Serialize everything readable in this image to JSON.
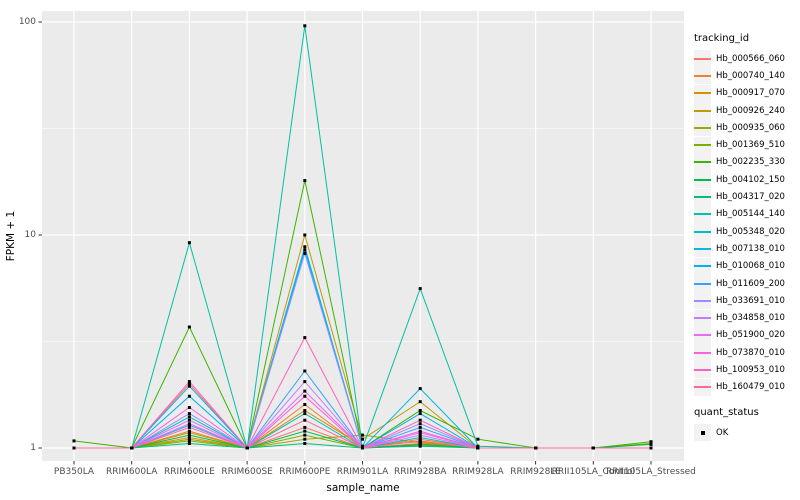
{
  "panel": {
    "bg": "#EBEBEB",
    "grid_color": "#FFFFFF",
    "key_bg": "#F2F2F2",
    "tick_color": "#333333",
    "tick_label_color": "#4D4D4D",
    "point_color": "#000000"
  },
  "chart_data": {
    "type": "line",
    "title": "",
    "xlabel": "sample_name",
    "ylabel": "FPKM + 1",
    "y_scale": "log10",
    "ylim": [
      1,
      112
    ],
    "y_ticks": [
      {
        "label": "1",
        "value": 1
      },
      {
        "label": "10",
        "value": 10
      },
      {
        "label": "100",
        "value": 100
      }
    ],
    "y_minor_ticks": [
      3.1623,
      31.623
    ],
    "grid": true,
    "legend_position": "right",
    "categories": [
      "PB350LA",
      "RRIM600LA",
      "RRIM600LE",
      "RRIM600SE",
      "RRIM600PE",
      "RRIM901LA",
      "RRIM928BA",
      "RRIM928LA",
      "RRIM928LE",
      "RRII105LA_Control",
      "RRII105LA_Stressed"
    ],
    "series": [
      {
        "name": "Hb_000566_060",
        "color": "#F8766D",
        "values": [
          1,
          1,
          2.0,
          1,
          1.25,
          1,
          1.05,
          1,
          1,
          1,
          1
        ]
      },
      {
        "name": "Hb_000740_140",
        "color": "#EA8331",
        "values": [
          1,
          1,
          1.2,
          1,
          1.6,
          1,
          1.1,
          1,
          1,
          1,
          1
        ]
      },
      {
        "name": "Hb_000917_070",
        "color": "#D89000",
        "values": [
          1,
          1,
          1.12,
          1,
          1.5,
          1.02,
          1.07,
          1,
          1,
          1,
          1
        ]
      },
      {
        "name": "Hb_000926_240",
        "color": "#C09B00",
        "values": [
          1,
          1,
          1.18,
          1,
          10,
          1.1,
          1.65,
          1,
          1,
          1,
          1
        ]
      },
      {
        "name": "Hb_000935_060",
        "color": "#A3A500",
        "values": [
          1,
          1,
          1.1,
          1,
          1.1,
          1.15,
          1.06,
          1,
          1,
          1,
          1
        ]
      },
      {
        "name": "Hb_001369_510",
        "color": "#7CAE00",
        "values": [
          1,
          1,
          1.08,
          1,
          1.15,
          1,
          1.03,
          1,
          1,
          1,
          1.05
        ]
      },
      {
        "name": "Hb_002235_330",
        "color": "#39B600",
        "values": [
          1.08,
          1,
          3.7,
          1,
          18,
          1,
          1.5,
          1.1,
          1,
          1,
          1.07
        ]
      },
      {
        "name": "Hb_004102_150",
        "color": "#00BB4E",
        "values": [
          1,
          1,
          1.15,
          1,
          1.2,
          1,
          1.04,
          1,
          1,
          1,
          1.04
        ]
      },
      {
        "name": "Hb_004317_020",
        "color": "#00BF7D",
        "values": [
          1,
          1,
          1.05,
          1,
          1.05,
          1,
          1.02,
          1,
          1,
          1,
          1
        ]
      },
      {
        "name": "Hb_005144_140",
        "color": "#00C1A3",
        "values": [
          1,
          1,
          9.2,
          1,
          96,
          1,
          5.6,
          1.02,
          1,
          1,
          1
        ]
      },
      {
        "name": "Hb_005348_020",
        "color": "#00BFC4",
        "values": [
          1,
          1,
          1.4,
          1,
          1.45,
          1,
          1.12,
          1,
          1,
          1,
          1
        ]
      },
      {
        "name": "Hb_007138_010",
        "color": "#00BAE0",
        "values": [
          1,
          1,
          1.95,
          1,
          8.8,
          1,
          1.9,
          1,
          1,
          1,
          1
        ]
      },
      {
        "name": "Hb_010068_010",
        "color": "#00B0F6",
        "values": [
          1,
          1,
          1.75,
          1,
          8.5,
          1,
          1.45,
          1,
          1,
          1,
          1
        ]
      },
      {
        "name": "Hb_011609_200",
        "color": "#35A2FF",
        "values": [
          1,
          1,
          1.28,
          1,
          2.3,
          1,
          1.25,
          1,
          1,
          1,
          1
        ]
      },
      {
        "name": "Hb_033691_010",
        "color": "#9590FF",
        "values": [
          1,
          1,
          1.45,
          1,
          8.2,
          1,
          1.3,
          1,
          1,
          1,
          1
        ]
      },
      {
        "name": "Hb_034858_010",
        "color": "#C77CFF",
        "values": [
          1,
          1,
          1.3,
          1,
          2.05,
          1,
          1.15,
          1,
          1,
          1,
          1
        ]
      },
      {
        "name": "Hb_051900_020",
        "color": "#E76BF3",
        "values": [
          1,
          1,
          1.35,
          1,
          1.85,
          1,
          1.2,
          1,
          1,
          1,
          1
        ]
      },
      {
        "name": "Hb_073870_010",
        "color": "#FA62DB",
        "values": [
          1,
          1,
          1.55,
          1,
          1.75,
          1,
          1.18,
          1,
          1,
          1,
          1
        ]
      },
      {
        "name": "Hb_100953_010",
        "color": "#FF62BC",
        "values": [
          1,
          1,
          2.05,
          1,
          3.3,
          1,
          1.35,
          1,
          1,
          1,
          1
        ]
      },
      {
        "name": "Hb_160479_010",
        "color": "#FF6A98",
        "values": [
          1,
          1,
          1.25,
          1,
          1.35,
          1,
          1.08,
          1,
          1,
          1,
          1
        ]
      }
    ],
    "legend": {
      "tracking_title": "tracking_id",
      "quant_title": "quant_status",
      "quant_items": [
        {
          "label": "OK",
          "marker": "black-square"
        }
      ]
    }
  }
}
